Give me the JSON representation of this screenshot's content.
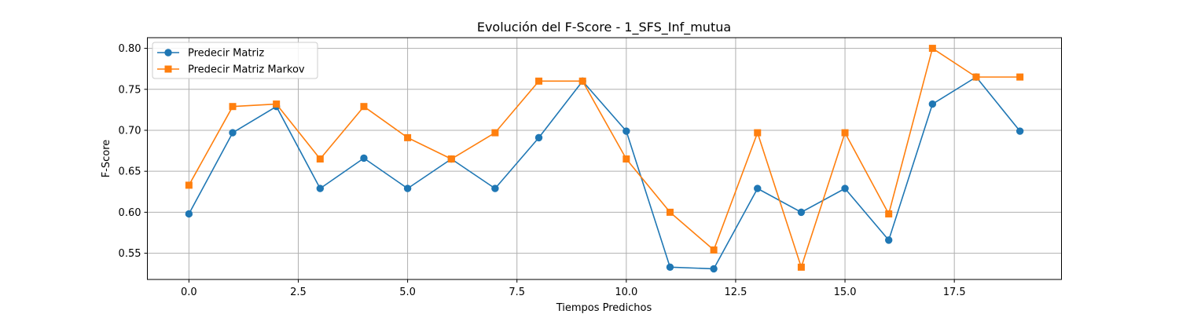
{
  "chart_data": {
    "type": "line",
    "title": "Evolución del F-Score - 1_SFS_Inf_mutua",
    "xlabel": "Tiempos Predichos",
    "ylabel": "F-Score",
    "xlim": [
      -0.95,
      19.95
    ],
    "ylim": [
      0.518,
      0.813
    ],
    "xticks": [
      0.0,
      2.5,
      5.0,
      7.5,
      10.0,
      12.5,
      15.0,
      17.5
    ],
    "xtick_labels": [
      "0.0",
      "2.5",
      "5.0",
      "7.5",
      "10.0",
      "12.5",
      "15.0",
      "17.5"
    ],
    "yticks": [
      0.55,
      0.6,
      0.65,
      0.7,
      0.75,
      0.8
    ],
    "ytick_labels": [
      "0.55",
      "0.60",
      "0.65",
      "0.70",
      "0.75",
      "0.80"
    ],
    "grid": true,
    "legend_position": "top-left",
    "x": [
      0,
      1,
      2,
      3,
      4,
      5,
      6,
      7,
      8,
      9,
      10,
      11,
      12,
      13,
      14,
      15,
      16,
      17,
      18,
      19
    ],
    "series": [
      {
        "name": "Predecir Matriz",
        "color": "#1f77b4",
        "marker": "circle",
        "values": [
          0.598,
          0.697,
          0.729,
          0.629,
          0.666,
          0.629,
          0.665,
          0.629,
          0.691,
          0.76,
          0.699,
          0.533,
          0.531,
          0.629,
          0.6,
          0.629,
          0.566,
          0.732,
          0.765,
          0.699
        ]
      },
      {
        "name": "Predecir Matriz Markov",
        "color": "#ff7f0e",
        "marker": "square",
        "values": [
          0.633,
          0.729,
          0.732,
          0.665,
          0.729,
          0.691,
          0.665,
          0.697,
          0.76,
          0.76,
          0.665,
          0.6,
          0.554,
          0.697,
          0.533,
          0.697,
          0.598,
          0.8,
          0.765,
          0.765
        ]
      }
    ]
  }
}
